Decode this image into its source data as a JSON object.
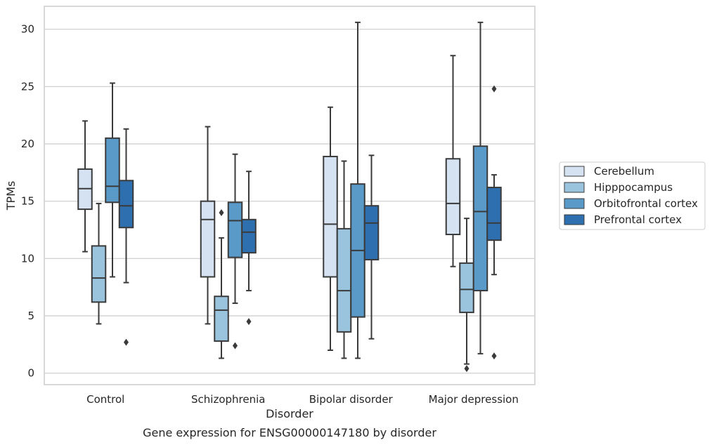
{
  "chart_data": {
    "type": "box",
    "title": "Gene expression for ENSG00000147180 by disorder",
    "xlabel": "Disorder",
    "ylabel": "TPMs",
    "ylim": [
      -1,
      32
    ],
    "yticks": [
      0,
      5,
      10,
      15,
      20,
      25,
      30
    ],
    "grid": true,
    "legend_position": "right",
    "categories": [
      "Control",
      "Schizophrenia",
      "Bipolar disorder",
      "Major depression"
    ],
    "series": [
      {
        "name": "Cerebellum",
        "color": "#d4e2f2",
        "boxes": [
          {
            "whisker_low": 10.6,
            "q1": 14.3,
            "median": 16.1,
            "q3": 17.8,
            "whisker_high": 22.0,
            "outliers": []
          },
          {
            "whisker_low": 4.3,
            "q1": 8.4,
            "median": 13.4,
            "q3": 15.0,
            "whisker_high": 21.5,
            "outliers": []
          },
          {
            "whisker_low": 2.0,
            "q1": 8.4,
            "median": 13.0,
            "q3": 18.9,
            "whisker_high": 23.2,
            "outliers": []
          },
          {
            "whisker_low": 9.3,
            "q1": 12.1,
            "median": 14.8,
            "q3": 18.7,
            "whisker_high": 27.7,
            "outliers": []
          }
        ]
      },
      {
        "name": "Hipppocampus",
        "color": "#9ac3dd",
        "boxes": [
          {
            "whisker_low": 4.3,
            "q1": 6.2,
            "median": 8.3,
            "q3": 11.1,
            "whisker_high": 14.8,
            "outliers": []
          },
          {
            "whisker_low": 1.3,
            "q1": 2.8,
            "median": 5.5,
            "q3": 6.7,
            "whisker_high": 11.8,
            "outliers": [
              14.0
            ]
          },
          {
            "whisker_low": 1.3,
            "q1": 3.6,
            "median": 7.2,
            "q3": 12.6,
            "whisker_high": 18.5,
            "outliers": []
          },
          {
            "whisker_low": 0.8,
            "q1": 5.3,
            "median": 7.3,
            "q3": 9.6,
            "whisker_high": 13.5,
            "outliers": [
              0.4
            ]
          }
        ]
      },
      {
        "name": "Orbitofrontal cortex",
        "color": "#5a9ac9",
        "boxes": [
          {
            "whisker_low": 8.4,
            "q1": 14.9,
            "median": 16.3,
            "q3": 20.5,
            "whisker_high": 25.3,
            "outliers": []
          },
          {
            "whisker_low": 6.1,
            "q1": 10.1,
            "median": 13.3,
            "q3": 14.9,
            "whisker_high": 19.1,
            "outliers": [
              2.4
            ]
          },
          {
            "whisker_low": 1.3,
            "q1": 4.9,
            "median": 10.7,
            "q3": 16.5,
            "whisker_high": 30.6,
            "outliers": []
          },
          {
            "whisker_low": 1.7,
            "q1": 7.2,
            "median": 14.1,
            "q3": 19.8,
            "whisker_high": 30.6,
            "outliers": []
          }
        ]
      },
      {
        "name": "Prefrontal cortex",
        "color": "#2e6faf",
        "boxes": [
          {
            "whisker_low": 7.9,
            "q1": 12.7,
            "median": 14.6,
            "q3": 16.8,
            "whisker_high": 21.3,
            "outliers": [
              2.7
            ]
          },
          {
            "whisker_low": 7.2,
            "q1": 10.5,
            "median": 12.3,
            "q3": 13.4,
            "whisker_high": 17.6,
            "outliers": [
              4.5
            ]
          },
          {
            "whisker_low": 3.0,
            "q1": 9.9,
            "median": 13.1,
            "q3": 14.6,
            "whisker_high": 19.0,
            "outliers": []
          },
          {
            "whisker_low": 8.6,
            "q1": 11.6,
            "median": 13.1,
            "q3": 16.2,
            "whisker_high": 17.3,
            "outliers": [
              24.8,
              1.5
            ]
          }
        ]
      }
    ]
  }
}
